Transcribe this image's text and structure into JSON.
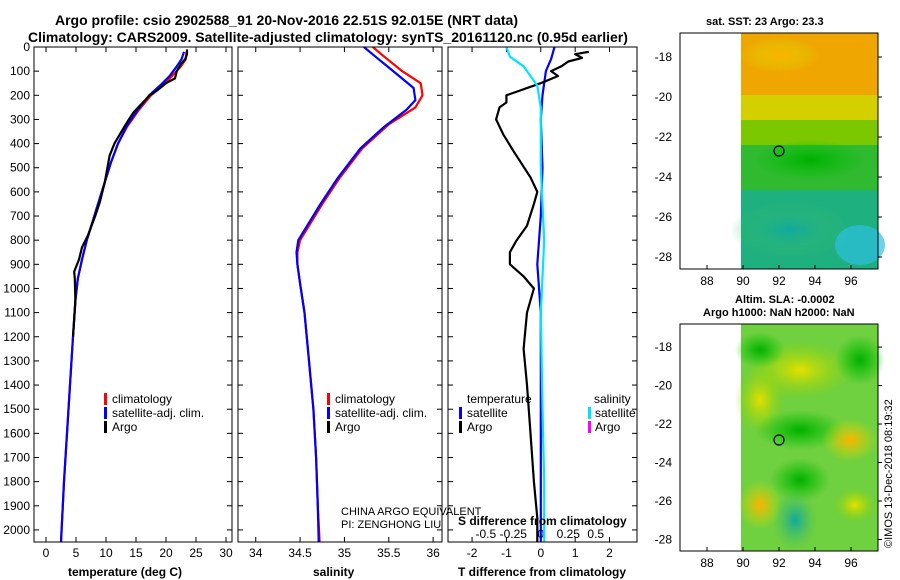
{
  "header": {
    "title_line1": "Argo profile: csio 2902588_91 20-Nov-2016 22.51S 92.015E (NRT data)",
    "title_line2": "Climatology: CARS2009. Satellite-adjusted climatology: synTS_20161120.nc (0.95d earlier)"
  },
  "colors": {
    "climatology": "#ff0000",
    "satellite_adj": "#0000ff",
    "argo": "#000000",
    "sal_satellite": "#00e5ff",
    "sal_argo": "#ff00ff"
  },
  "chart_data": [
    {
      "type": "line",
      "id": "temperature_profile",
      "xlabel": "temperature (deg C)",
      "ylabel": "",
      "xlim": [
        -2,
        31
      ],
      "ylim": [
        2050,
        0
      ],
      "xticks": [
        "0",
        "5",
        "10",
        "15",
        "20",
        "25",
        "30"
      ],
      "xtick_values": [
        0,
        5,
        10,
        15,
        20,
        25,
        30
      ],
      "yticks": [
        "0",
        "100",
        "200",
        "300",
        "400",
        "500",
        "600",
        "700",
        "800",
        "900",
        "1000",
        "1100",
        "1200",
        "1300",
        "1400",
        "1500",
        "1600",
        "1700",
        "1800",
        "1900",
        "2000"
      ],
      "ytick_values": [
        0,
        100,
        200,
        300,
        400,
        500,
        600,
        700,
        800,
        900,
        1000,
        1100,
        1200,
        1300,
        1400,
        1500,
        1600,
        1700,
        1800,
        1900,
        2000
      ],
      "legend": [
        "climatology",
        "satellite-adj. clim.",
        "Argo"
      ],
      "series": [
        {
          "name": "climatology",
          "color": "#ff0000",
          "points": [
            [
              23.4,
              20
            ],
            [
              23.3,
              50
            ],
            [
              22.5,
              80
            ],
            [
              21.0,
              120
            ],
            [
              19.5,
              160
            ],
            [
              17.5,
              200
            ],
            [
              15.5,
              260
            ],
            [
              13.5,
              330
            ],
            [
              12.0,
              400
            ],
            [
              10.8,
              480
            ],
            [
              9.8,
              560
            ],
            [
              8.8,
              640
            ],
            [
              7.8,
              720
            ],
            [
              6.8,
              800
            ],
            [
              6.0,
              880
            ],
            [
              5.3,
              960
            ],
            [
              4.9,
              1050
            ],
            [
              4.5,
              1200
            ],
            [
              4.0,
              1400
            ],
            [
              3.5,
              1600
            ],
            [
              3.0,
              1800
            ],
            [
              2.7,
              1950
            ],
            [
              2.5,
              2050
            ]
          ]
        },
        {
          "name": "satellite-adj. clim.",
          "color": "#0000ff",
          "points": [
            [
              23.0,
              20
            ],
            [
              22.6,
              50
            ],
            [
              21.8,
              80
            ],
            [
              20.6,
              120
            ],
            [
              19.0,
              160
            ],
            [
              17.2,
              200
            ],
            [
              15.3,
              260
            ],
            [
              13.4,
              330
            ],
            [
              12.0,
              400
            ],
            [
              10.8,
              480
            ],
            [
              9.8,
              560
            ],
            [
              8.8,
              640
            ],
            [
              7.8,
              720
            ],
            [
              6.8,
              800
            ],
            [
              6.0,
              880
            ],
            [
              5.3,
              960
            ],
            [
              4.9,
              1050
            ],
            [
              4.5,
              1200
            ],
            [
              4.0,
              1400
            ],
            [
              3.5,
              1600
            ],
            [
              3.0,
              1800
            ],
            [
              2.7,
              1950
            ],
            [
              2.5,
              2050
            ]
          ]
        },
        {
          "name": "Argo",
          "color": "#000000",
          "points": [
            [
              23.5,
              10
            ],
            [
              23.5,
              30
            ],
            [
              23.2,
              50
            ],
            [
              22.5,
              70
            ],
            [
              21.8,
              100
            ],
            [
              21.5,
              130
            ],
            [
              20.0,
              150
            ],
            [
              18.5,
              180
            ],
            [
              17.3,
              200
            ],
            [
              14.6,
              270
            ],
            [
              13.3,
              320
            ],
            [
              11.4,
              400
            ],
            [
              10.6,
              450
            ],
            [
              9.8,
              560
            ],
            [
              9.0,
              640
            ],
            [
              8.2,
              700
            ],
            [
              7.0,
              780
            ],
            [
              6.0,
              830
            ],
            [
              5.5,
              880
            ],
            [
              4.7,
              930
            ],
            [
              4.8,
              960
            ],
            [
              4.9,
              1050
            ],
            [
              4.5,
              1200
            ]
          ]
        }
      ]
    },
    {
      "type": "line",
      "id": "salinity_profile",
      "xlabel": "salinity",
      "xlim": [
        33.8,
        36.1
      ],
      "ylim": [
        2050,
        0
      ],
      "xticks": [
        "34",
        "34.5",
        "35",
        "35.5",
        "36"
      ],
      "xtick_values": [
        34,
        34.5,
        35,
        35.5,
        36
      ],
      "legend": [
        "climatology",
        "satellite-adj. clim.",
        "Argo"
      ],
      "annotations": [
        "CHINA ARGO EQUIVALENT",
        "PI: ZENGHONG LIU"
      ],
      "series": [
        {
          "name": "climatology",
          "color": "#ff0000",
          "points": [
            [
              35.32,
              0
            ],
            [
              35.45,
              40
            ],
            [
              35.65,
              100
            ],
            [
              35.86,
              150
            ],
            [
              35.88,
              200
            ],
            [
              35.8,
              250
            ],
            [
              35.5,
              320
            ],
            [
              35.2,
              420
            ],
            [
              34.95,
              540
            ],
            [
              34.75,
              650
            ],
            [
              34.6,
              740
            ],
            [
              34.5,
              800
            ],
            [
              34.47,
              850
            ],
            [
              34.47,
              900
            ],
            [
              34.5,
              980
            ],
            [
              34.55,
              1100
            ],
            [
              34.6,
              1300
            ],
            [
              34.65,
              1500
            ],
            [
              34.68,
              1700
            ],
            [
              34.7,
              1900
            ],
            [
              34.72,
              2050
            ]
          ]
        },
        {
          "name": "satellite-adj. clim.",
          "color": "#0000ff",
          "points": [
            [
              35.22,
              0
            ],
            [
              35.35,
              40
            ],
            [
              35.55,
              100
            ],
            [
              35.78,
              170
            ],
            [
              35.8,
              220
            ],
            [
              35.7,
              260
            ],
            [
              35.45,
              330
            ],
            [
              35.18,
              420
            ],
            [
              34.93,
              540
            ],
            [
              34.73,
              650
            ],
            [
              34.58,
              740
            ],
            [
              34.48,
              800
            ],
            [
              34.46,
              850
            ],
            [
              34.47,
              900
            ],
            [
              34.5,
              980
            ],
            [
              34.55,
              1100
            ],
            [
              34.6,
              1300
            ],
            [
              34.65,
              1500
            ],
            [
              34.68,
              1700
            ],
            [
              34.7,
              1900
            ],
            [
              34.71,
              2050
            ]
          ]
        },
        {
          "name": "Argo",
          "color": "#000000",
          "points": []
        }
      ]
    },
    {
      "type": "line",
      "id": "difference_profile",
      "xlabel": "T difference from climatology",
      "xlabel2": "S difference from climatology",
      "xlim": [
        -2.7,
        2.8
      ],
      "ylim": [
        2050,
        0
      ],
      "xticks": [
        "-2",
        "-1",
        "0",
        "1",
        "2"
      ],
      "xtick_values": [
        -2,
        -1,
        0,
        1,
        2
      ],
      "sticks": [
        "-0.5",
        "-0.25",
        "0",
        "0.25",
        "0.5"
      ],
      "stick_values": [
        -1.6,
        -0.8,
        0,
        0.8,
        1.6
      ],
      "legend_left_title": "temperature",
      "legend_right_title": "salinity",
      "legend_left": [
        "satellite",
        "Argo"
      ],
      "legend_right": [
        "satellite",
        "Argo"
      ],
      "series": [
        {
          "name": "T satellite",
          "color": "#0000ff",
          "points": [
            [
              0.4,
              0
            ],
            [
              0.3,
              50
            ],
            [
              0.15,
              100
            ],
            [
              0.05,
              200
            ],
            [
              0.0,
              300
            ],
            [
              0.05,
              500
            ],
            [
              0.0,
              700
            ],
            [
              -0.1,
              900
            ],
            [
              0.0,
              1100
            ],
            [
              0.0,
              2050
            ]
          ]
        },
        {
          "name": "T Argo",
          "color": "#000000",
          "points": [
            [
              1.4,
              20
            ],
            [
              1.0,
              30
            ],
            [
              1.2,
              45
            ],
            [
              0.8,
              60
            ],
            [
              0.6,
              80
            ],
            [
              0.3,
              100
            ],
            [
              0.5,
              120
            ],
            [
              0.0,
              150
            ],
            [
              -1.0,
              200
            ],
            [
              -1.0,
              230
            ],
            [
              -1.2,
              250
            ],
            [
              -1.3,
              300
            ],
            [
              -1.1,
              360
            ],
            [
              -0.8,
              430
            ],
            [
              -0.3,
              540
            ],
            [
              -0.1,
              600
            ],
            [
              -0.2,
              650
            ],
            [
              -0.4,
              740
            ],
            [
              -0.7,
              800
            ],
            [
              -0.9,
              850
            ],
            [
              -0.9,
              900
            ],
            [
              -0.5,
              950
            ],
            [
              -0.2,
              1000
            ],
            [
              -0.4,
              1100
            ],
            [
              -0.5,
              1250
            ],
            [
              -0.4,
              1400
            ],
            [
              -0.3,
              1600
            ],
            [
              -0.2,
              1800
            ],
            [
              -0.1,
              1950
            ],
            [
              -0.1,
              2050
            ]
          ]
        },
        {
          "name": "S satellite",
          "color": "#00e5ff",
          "points": [
            [
              -1.0,
              0
            ],
            [
              -0.9,
              40
            ],
            [
              -0.5,
              80
            ],
            [
              -0.3,
              120
            ],
            [
              -0.1,
              160
            ],
            [
              0.0,
              250
            ],
            [
              0.0,
              500
            ],
            [
              0.1,
              800
            ],
            [
              0.0,
              1100
            ],
            [
              0.05,
              1500
            ],
            [
              0.1,
              1800
            ],
            [
              0.1,
              2050
            ]
          ]
        },
        {
          "name": "S Argo",
          "color": "#ff00ff",
          "points": []
        }
      ]
    }
  ],
  "maps": {
    "sst_title": "sat. SST: 23 Argo: 23.3",
    "sla_title1": "Altim. SLA: -0.0002",
    "sla_title2": "Argo h1000: NaN h2000: NaN",
    "xticks": [
      "88",
      "90",
      "92",
      "94",
      "96"
    ],
    "xtick_values": [
      88,
      90,
      92,
      94,
      96
    ],
    "yticks": [
      "-18",
      "-20",
      "-22",
      "-24",
      "-26",
      "-28"
    ],
    "ytick_values": [
      -18,
      -20,
      -22,
      -24,
      -26,
      -28
    ],
    "lon_range": [
      86.5,
      97.5
    ],
    "lat_range": [
      -16.8,
      -28.6
    ],
    "data_lon_start": 90,
    "marker_lon": 92.015,
    "marker_lat": -22.51
  },
  "credit": "©IMOS 13-Dec-2018 08:19:32"
}
